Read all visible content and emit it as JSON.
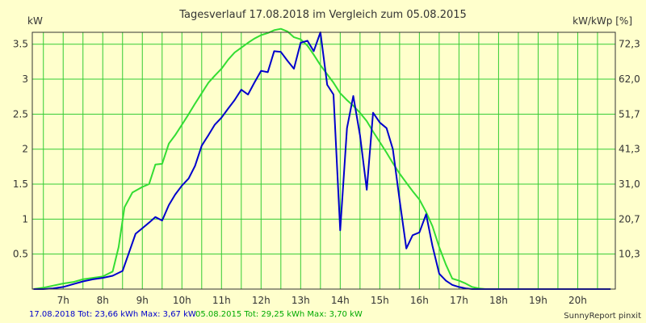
{
  "chart_data": {
    "type": "line",
    "title": "Tagesverlauf 17.08.2018 im Vergleich zum 05.08.2015",
    "ylabel_left": "kW",
    "ylabel_right": "kW/kWp [%]",
    "x_ticks": [
      "7h",
      "8h",
      "9h",
      "10h",
      "11h",
      "12h",
      "13h",
      "14h",
      "15h",
      "16h",
      "17h",
      "18h",
      "19h",
      "20h"
    ],
    "x_tick_hours": [
      7,
      8,
      9,
      10,
      11,
      12,
      13,
      14,
      15,
      16,
      17,
      18,
      19,
      20
    ],
    "xlim": [
      6.22,
      20.95
    ],
    "y_ticks_left": [
      "0.5",
      "1",
      "1.5",
      "2",
      "2.5",
      "3",
      "3.5"
    ],
    "y_tick_values_left": [
      0.5,
      1,
      1.5,
      2,
      2.5,
      3,
      3.5
    ],
    "y_ticks_right": [
      "10,3",
      "20,7",
      "31,0",
      "41,3",
      "51,7",
      "62,0",
      "72,3"
    ],
    "ylim": [
      0,
      3.67
    ],
    "grid": true,
    "series": [
      {
        "name": "17.08.2018",
        "color": "#0000CC",
        "x": [
          6.25,
          6.5,
          6.75,
          7.0,
          7.25,
          7.5,
          7.75,
          8.0,
          8.25,
          8.5,
          8.65,
          8.83,
          9.0,
          9.17,
          9.33,
          9.5,
          9.67,
          9.83,
          10.0,
          10.17,
          10.33,
          10.5,
          10.67,
          10.83,
          11.0,
          11.17,
          11.33,
          11.5,
          11.67,
          11.83,
          12.0,
          12.17,
          12.33,
          12.5,
          12.67,
          12.83,
          13.0,
          13.17,
          13.33,
          13.5,
          13.67,
          13.83,
          14.0,
          14.17,
          14.33,
          14.5,
          14.67,
          14.83,
          15.0,
          15.17,
          15.33,
          15.5,
          15.67,
          15.83,
          16.0,
          16.17,
          16.33,
          16.5,
          16.67,
          16.83,
          17.0,
          17.17,
          17.33,
          17.5,
          17.67,
          17.83,
          18.0,
          18.17,
          18.33,
          18.5,
          18.67,
          18.83,
          19.0,
          19.17,
          19.33,
          19.5,
          19.67,
          19.83,
          20.0,
          20.17,
          20.33,
          20.5,
          20.67,
          20.83
        ],
        "values": [
          0.0,
          0.0,
          0.01,
          0.03,
          0.07,
          0.11,
          0.14,
          0.16,
          0.19,
          0.26,
          0.5,
          0.79,
          0.87,
          0.95,
          1.03,
          0.98,
          1.2,
          1.35,
          1.48,
          1.58,
          1.76,
          2.05,
          2.2,
          2.35,
          2.45,
          2.58,
          2.7,
          2.85,
          2.78,
          2.95,
          3.12,
          3.1,
          3.4,
          3.39,
          3.26,
          3.15,
          3.52,
          3.55,
          3.4,
          3.67,
          2.92,
          2.78,
          0.84,
          2.3,
          2.76,
          2.2,
          1.42,
          2.52,
          2.38,
          2.3,
          2.0,
          1.27,
          0.58,
          0.77,
          0.81,
          1.07,
          0.62,
          0.22,
          0.12,
          0.06,
          0.03,
          0.01,
          0.0,
          0.0,
          0.0,
          0.0,
          0.0,
          0.0,
          0.0,
          0.0,
          0.0,
          0.0,
          0.0,
          0.0,
          0.0,
          0.0,
          0.0,
          0.0,
          0.0,
          0.0,
          0.0,
          0.0,
          0.0,
          0.0
        ]
      },
      {
        "name": "05.08.2015",
        "color": "#33DD33",
        "x": [
          6.25,
          6.5,
          6.75,
          7.0,
          7.25,
          7.5,
          7.75,
          8.0,
          8.25,
          8.4,
          8.55,
          8.75,
          9.0,
          9.17,
          9.33,
          9.5,
          9.67,
          9.83,
          10.0,
          10.17,
          10.33,
          10.5,
          10.67,
          10.83,
          11.0,
          11.17,
          11.33,
          11.5,
          11.67,
          11.83,
          12.0,
          12.17,
          12.33,
          12.5,
          12.67,
          12.83,
          13.0,
          13.17,
          13.33,
          13.5,
          13.67,
          13.83,
          14.0,
          14.17,
          14.33,
          14.5,
          14.67,
          14.83,
          15.0,
          15.17,
          15.33,
          15.5,
          15.67,
          15.83,
          16.0,
          16.17,
          16.33,
          16.5,
          16.67,
          16.83,
          17.0,
          17.17,
          17.33,
          17.5,
          17.67,
          17.83,
          18.0,
          18.17,
          18.33,
          18.5,
          18.67,
          18.83,
          19.0,
          19.17,
          19.33,
          19.5,
          19.67,
          19.83,
          20.0,
          20.17,
          20.33,
          20.5,
          20.67,
          20.83
        ],
        "values": [
          0.0,
          0.02,
          0.05,
          0.08,
          0.1,
          0.14,
          0.16,
          0.18,
          0.25,
          0.6,
          1.17,
          1.38,
          1.46,
          1.5,
          1.78,
          1.79,
          2.08,
          2.2,
          2.35,
          2.5,
          2.65,
          2.8,
          2.95,
          3.05,
          3.15,
          3.28,
          3.38,
          3.45,
          3.52,
          3.58,
          3.63,
          3.66,
          3.7,
          3.72,
          3.68,
          3.6,
          3.57,
          3.48,
          3.35,
          3.2,
          3.07,
          2.95,
          2.8,
          2.7,
          2.62,
          2.52,
          2.4,
          2.25,
          2.1,
          1.95,
          1.8,
          1.65,
          1.52,
          1.4,
          1.28,
          1.1,
          0.9,
          0.6,
          0.35,
          0.15,
          0.12,
          0.08,
          0.03,
          0.01,
          0.0,
          0.0,
          0.0,
          0.0,
          0.0,
          0.0,
          0.0,
          0.0,
          0.0,
          0.0,
          0.0,
          0.0,
          0.0,
          0.0,
          0.0,
          0.0,
          0.0,
          0.0,
          0.0,
          0.0
        ]
      }
    ],
    "footer": {
      "series1_label": "17.08.2018 Tot: 23,66 kWh Max: 3,67 kW",
      "series2_label": "05.08.2015 Tot: 29,25 kWh Max: 3,70 kW",
      "credit": "SunnyReport pinxit"
    }
  }
}
